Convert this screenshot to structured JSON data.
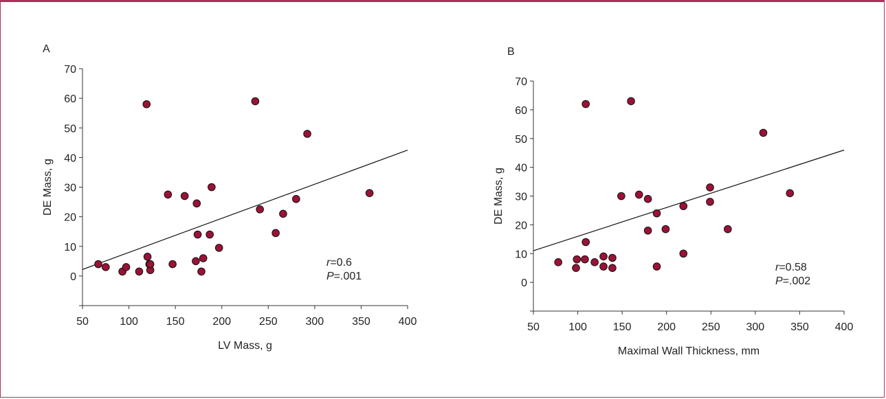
{
  "chart_data": [
    {
      "type": "scatter",
      "panel_label": "A",
      "xlabel": "LV Mass, g",
      "ylabel": "DE Mass, g",
      "xlim": [
        50,
        400
      ],
      "ylim": [
        -10,
        70
      ],
      "xticks": [
        50,
        100,
        150,
        200,
        250,
        300,
        350,
        400
      ],
      "yticks": [
        0,
        10,
        20,
        30,
        40,
        50,
        60,
        70
      ],
      "grid": false,
      "stat_r_prefix": "r",
      "stat_r_value": "=0.6",
      "stat_p_prefix": "P",
      "stat_p_value": "=.001",
      "fit_line": {
        "x": [
          50,
          400
        ],
        "y": [
          2.2,
          42.5
        ]
      },
      "points": {
        "x": [
          67,
          75,
          93,
          97,
          111,
          119,
          120,
          122,
          123,
          123,
          142,
          147,
          160,
          172,
          173,
          174,
          178,
          180,
          187,
          189,
          197,
          236,
          241,
          258,
          266,
          280,
          292,
          359
        ],
        "y": [
          4,
          3,
          1.5,
          3,
          1.5,
          58,
          6.5,
          4,
          2,
          4,
          27.5,
          4,
          27,
          5,
          24.5,
          14,
          1.5,
          6,
          14,
          30,
          9.5,
          59,
          22.5,
          14.5,
          21,
          26,
          48,
          28
        ]
      }
    },
    {
      "type": "scatter",
      "panel_label": "B",
      "xlabel": "Maximal Wall Thickness, mm",
      "ylabel": "DE Mass, g",
      "xlim": [
        50,
        400
      ],
      "ylim": [
        -10,
        70
      ],
      "xticks": [
        50,
        100,
        150,
        200,
        250,
        300,
        350,
        400
      ],
      "yticks": [
        0,
        10,
        20,
        30,
        40,
        50,
        60,
        70
      ],
      "grid": false,
      "stat_r_prefix": "r",
      "stat_r_value": "=0.58",
      "stat_p_prefix": "P",
      "stat_p_value": "=.002",
      "fit_line": {
        "x": [
          50,
          400
        ],
        "y": [
          11,
          46
        ]
      },
      "points": {
        "x": [
          78,
          98,
          99,
          108,
          109,
          109,
          119,
          129,
          129,
          139,
          139,
          149,
          160,
          169,
          179,
          179,
          189,
          189,
          199,
          219,
          219,
          249,
          249,
          269,
          309,
          339
        ],
        "y": [
          7,
          5,
          8,
          8,
          14,
          62,
          7,
          9,
          5.5,
          5,
          8.5,
          30,
          63,
          30.5,
          29,
          18,
          5.5,
          24,
          18.5,
          26.5,
          10,
          28,
          33,
          18.5,
          52,
          31
        ]
      }
    }
  ]
}
